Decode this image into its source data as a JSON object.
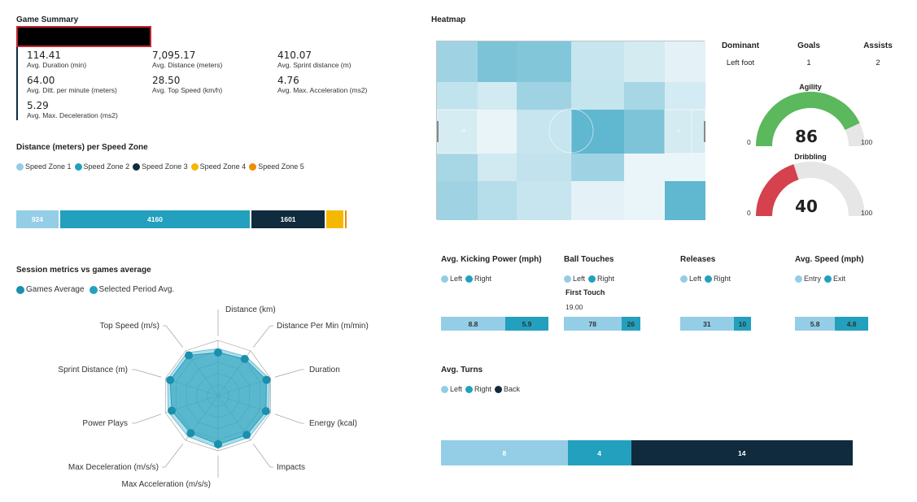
{
  "colors": {
    "zone1": "#93cde6",
    "zone2": "#22a0bd",
    "zone3": "#0f2b3d",
    "zone4": "#f5b800",
    "zone5": "#f08c00",
    "agility": "#5bb85d",
    "dribbling": "#d5414c",
    "gauge_bg": "#e6e6e6"
  },
  "game_summary": {
    "title": "Game Summary",
    "metrics": [
      {
        "value": "114.41",
        "label": "Avg. Duration (min)"
      },
      {
        "value": "7,095.17",
        "label": "Avg. Distance (meters)"
      },
      {
        "value": "410.07",
        "label": "Avg. Sprint distance (m)"
      },
      {
        "value": "64.00",
        "label": "Avg. Ditt. per minute (meters)"
      },
      {
        "value": "28.50",
        "label": "Avg. Top Speed (km/h)"
      },
      {
        "value": "4.76",
        "label": "Avg. Max. Acceleration (ms2)"
      },
      {
        "value": "5.29",
        "label": "Avg. Max. Deceleration (ms2)"
      }
    ]
  },
  "speed_zone": {
    "title": "Distance (meters) per Speed Zone",
    "legend": [
      "Speed Zone 1",
      "Speed Zone 2",
      "Speed Zone 3",
      "Speed Zone 4",
      "Speed Zone 5"
    ],
    "segments": [
      {
        "label": "924",
        "value": 924
      },
      {
        "label": "4160",
        "value": 4160
      },
      {
        "label": "1601",
        "value": 1601
      },
      {
        "label": "",
        "value": 380
      },
      {
        "label": "",
        "value": 30
      }
    ]
  },
  "session": {
    "title": "Session metrics vs games average",
    "legend": [
      "Games Average",
      "Selected Period Avg."
    ],
    "axes": [
      "Distance (km)",
      "Distance Per Min (m/min)",
      "Duration",
      "Energy (kcal)",
      "Impacts",
      "Max Acceleration (m/s/s)",
      "Max Deceleration (m/s/s)",
      "Power Plays",
      "Sprint Distance (m)",
      "Top Speed (m/s)"
    ]
  },
  "heatmap": {
    "title": "Heatmap",
    "cells": [
      [
        "#9fd3e3",
        "#7cc3d8",
        "#82c6da",
        "#c6e5ee",
        "#d4ebf2",
        "#e4f2f7"
      ],
      [
        "#c1e3ed",
        "#d2eaf2",
        "#9fd3e3",
        "#c4e5ee",
        "#a7d6e5",
        "#d3ebf2"
      ],
      [
        "#d6ecf3",
        "#e8f4f8",
        "#c6e5ee",
        "#5fb7d0",
        "#7ec4d8",
        "#d4ebf2"
      ],
      [
        "#a7d6e5",
        "#d1e9f1",
        "#c2e3ed",
        "#9fd3e3",
        "#eaf5f9",
        "#eaf5f9"
      ],
      [
        "#9fd3e3",
        "#b6deea",
        "#c6e5ee",
        "#e4f2f7",
        "#eaf5f9",
        "#5fb7d0"
      ]
    ]
  },
  "player": {
    "headers": [
      "Dominant",
      "Goals",
      "Assists"
    ],
    "values": [
      "Left foot",
      "1",
      "2"
    ]
  },
  "agility": {
    "title": "Agility",
    "value": 86,
    "min": "0",
    "max": "100"
  },
  "dribbling": {
    "title": "Dribbling",
    "value": 40,
    "min": "0",
    "max": "100"
  },
  "kicking": {
    "title": "Avg. Kicking Power (mph)",
    "legend": [
      "Left",
      "Right"
    ],
    "values": [
      8.8,
      5.9
    ],
    "labels": [
      "8.8",
      "5.9"
    ]
  },
  "touches": {
    "title": "Ball Touches",
    "legend": [
      "Left",
      "Right"
    ],
    "first_touch_label": "First Touch",
    "first_touch_value": "19.00",
    "values": [
      78,
      26
    ],
    "labels": [
      "78",
      "26"
    ]
  },
  "releases": {
    "title": "Releases",
    "legend": [
      "Left",
      "Right"
    ],
    "values": [
      31,
      10
    ],
    "labels": [
      "31",
      "10"
    ]
  },
  "avg_speed": {
    "title": "Avg. Speed (mph)",
    "legend": [
      "Entry",
      "Exit"
    ],
    "values": [
      5.8,
      4.8
    ],
    "labels": [
      "5.8",
      "4.8"
    ]
  },
  "turns": {
    "title": "Avg. Turns",
    "legend": [
      "Left",
      "Right",
      "Back"
    ],
    "values": [
      8,
      4,
      14
    ],
    "labels": [
      "8",
      "4",
      "14"
    ]
  }
}
